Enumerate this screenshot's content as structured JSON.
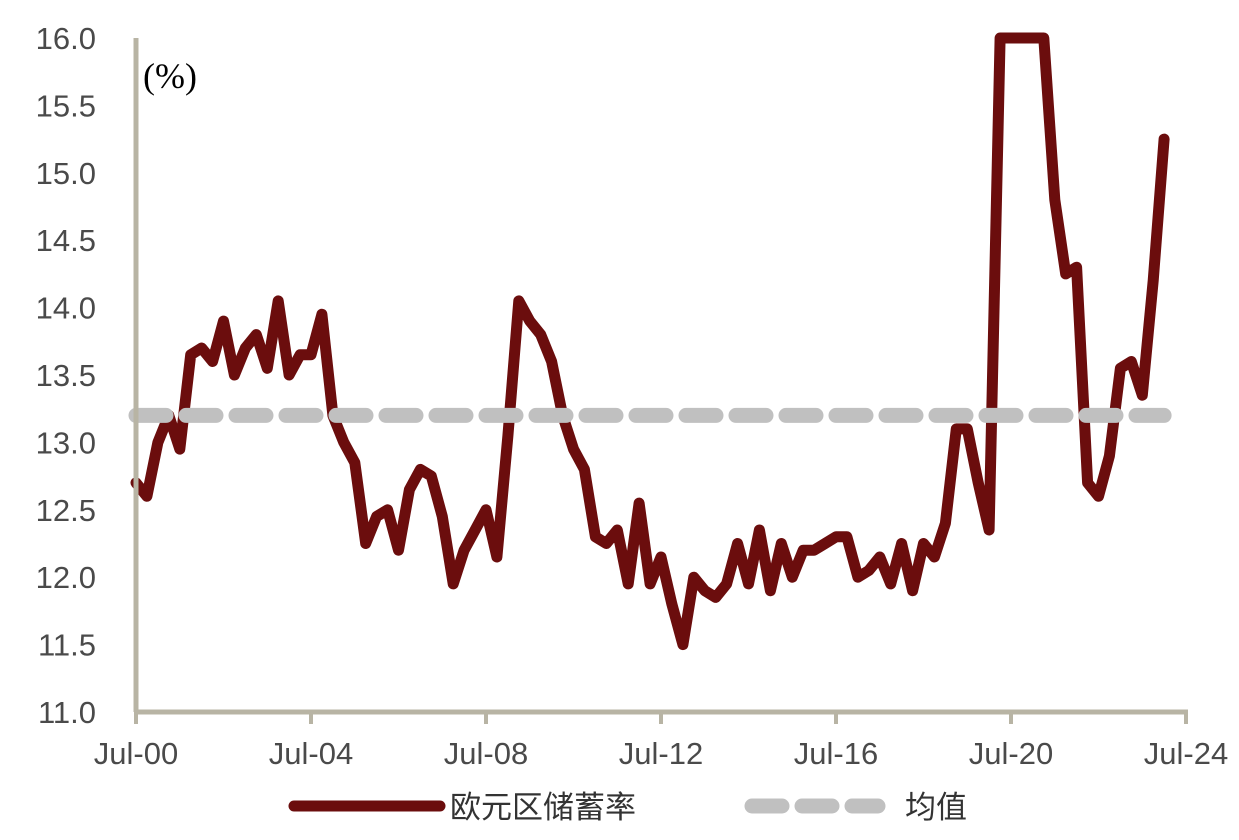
{
  "chart_data": {
    "type": "line",
    "unit_label": "(%)",
    "title": "",
    "xlabel": "",
    "ylabel": "",
    "ylim": [
      11.0,
      16.0
    ],
    "y_ticks": [
      "11.0",
      "11.5",
      "12.0",
      "12.5",
      "13.0",
      "13.5",
      "14.0",
      "14.5",
      "15.0",
      "15.5",
      "16.0"
    ],
    "x_ticks": [
      "Jul-00",
      "Jul-04",
      "Jul-08",
      "Jul-12",
      "Jul-16",
      "Jul-20",
      "Jul-24"
    ],
    "x_tick_dates": [
      "2000-07",
      "2004-07",
      "2008-07",
      "2012-07",
      "2016-07",
      "2020-07",
      "2024-07"
    ],
    "grid": false,
    "legend_position": "bottom",
    "series": [
      {
        "name": "欧元区储蓄率",
        "style": "solid",
        "color": "#6b0d0d",
        "dates": [
          "2000-07",
          "2000-10",
          "2001-01",
          "2001-04",
          "2001-07",
          "2001-10",
          "2002-01",
          "2002-04",
          "2002-07",
          "2002-10",
          "2003-01",
          "2003-04",
          "2003-07",
          "2003-10",
          "2004-01",
          "2004-04",
          "2004-07",
          "2004-10",
          "2005-01",
          "2005-04",
          "2005-07",
          "2005-10",
          "2006-01",
          "2006-04",
          "2006-07",
          "2006-10",
          "2007-01",
          "2007-04",
          "2007-07",
          "2007-10",
          "2008-01",
          "2008-04",
          "2008-07",
          "2008-10",
          "2009-01",
          "2009-04",
          "2009-07",
          "2009-10",
          "2010-01",
          "2010-04",
          "2010-07",
          "2010-10",
          "2011-01",
          "2011-04",
          "2011-07",
          "2011-10",
          "2012-01",
          "2012-04",
          "2012-07",
          "2012-10",
          "2013-01",
          "2013-04",
          "2013-07",
          "2013-10",
          "2014-01",
          "2014-04",
          "2014-07",
          "2014-10",
          "2015-01",
          "2015-04",
          "2015-07",
          "2015-10",
          "2016-01",
          "2016-04",
          "2016-07",
          "2016-10",
          "2017-01",
          "2017-04",
          "2017-07",
          "2017-10",
          "2018-01",
          "2018-04",
          "2018-07",
          "2018-10",
          "2019-01",
          "2019-04",
          "2019-07",
          "2019-10",
          "2020-01",
          "2020-04",
          "2020-07",
          "2020-10",
          "2021-01",
          "2021-04",
          "2021-07",
          "2021-10",
          "2022-01",
          "2022-04",
          "2022-07",
          "2022-10",
          "2023-01",
          "2023-04",
          "2023-07",
          "2023-10",
          "2024-01"
        ],
        "values": [
          12.7,
          12.6,
          13.0,
          13.2,
          12.95,
          13.65,
          13.7,
          13.6,
          13.9,
          13.5,
          13.7,
          13.8,
          13.55,
          14.05,
          13.5,
          13.65,
          13.65,
          13.95,
          13.2,
          13.0,
          12.85,
          12.25,
          12.45,
          12.5,
          12.2,
          12.65,
          12.8,
          12.75,
          12.45,
          11.95,
          12.2,
          12.35,
          12.5,
          12.15,
          13.05,
          14.05,
          13.9,
          13.8,
          13.6,
          13.2,
          12.95,
          12.8,
          12.3,
          12.25,
          12.35,
          11.95,
          12.55,
          11.95,
          12.15,
          11.8,
          11.5,
          12.0,
          11.9,
          11.85,
          11.95,
          12.25,
          11.95,
          12.35,
          11.9,
          12.25,
          12.0,
          12.2,
          12.2,
          12.25,
          12.3,
          12.3,
          12.0,
          12.05,
          12.15,
          11.95,
          12.25,
          11.9,
          12.25,
          12.15,
          12.4,
          13.1,
          13.1,
          12.7,
          12.35,
          16.0,
          16.0,
          16.0,
          16.0,
          16.0,
          14.8,
          14.25,
          14.3,
          12.7,
          12.6,
          12.9,
          13.55,
          13.6,
          13.35,
          14.2,
          15.25
        ]
      },
      {
        "name": "均值",
        "style": "dashed",
        "color": "#c0c0c0",
        "dates": [
          "2000-07",
          "2024-01"
        ],
        "values": [
          13.2,
          13.2
        ]
      }
    ]
  }
}
